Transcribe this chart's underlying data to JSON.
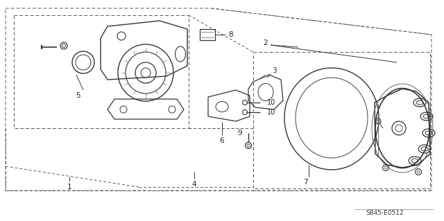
{
  "bg_color": "#ffffff",
  "diagram_code": "S845-E0512",
  "fig_width": 6.4,
  "fig_height": 3.19,
  "dpi": 100,
  "line_color": "#333333",
  "dash_color": "#555555"
}
